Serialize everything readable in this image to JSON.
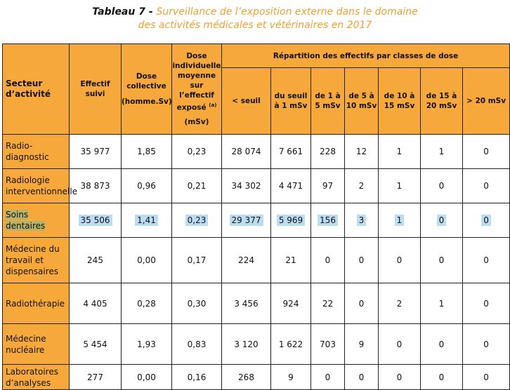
{
  "title": {
    "lead": "Tableau 7 - ",
    "line1": "Surveillance de l’exposition externe dans le domaine",
    "line2": "des activités médicales et vétérinaires en 2017"
  },
  "headers": {
    "sector": "Secteur d’activité",
    "effectif": "Effectif suivi",
    "dose_collective": "Dose collective",
    "dose_collective_unit": "(homme.Sv)",
    "dose_individuelle": "Dose individuelle moyenne sur l’effectif exposé",
    "dose_individuelle_ref": "(a)",
    "dose_individuelle_unit": "(mSv)",
    "repartition": "Répartition des effectifs par classes de dose",
    "classes": [
      "< seuil",
      "du seuil à 1 mSv",
      "de 1 à 5 mSv",
      "de 5 à 10 mSv",
      "de 10 à 15 mSv",
      "de 15 à 20 mSv",
      "> 20 mSv"
    ]
  },
  "rows": [
    {
      "sector": "Radio-diagnostic",
      "effectif": "35 977",
      "dose_collective": "1,85",
      "dose_individuelle": "0,23",
      "classes": [
        "28 074",
        "7 661",
        "228",
        "12",
        "1",
        "1",
        "0"
      ]
    },
    {
      "sector": "Radiologie interventionnelle",
      "effectif": "38 873",
      "dose_collective": "0,96",
      "dose_individuelle": "0,21",
      "classes": [
        "34 302",
        "4 471",
        "97",
        "2",
        "1",
        "0",
        "0"
      ]
    },
    {
      "sector": "Soins dentaires",
      "effectif": "35 506",
      "dose_collective": "1,41",
      "dose_individuelle": "0,23",
      "classes": [
        "29 377",
        "5 969",
        "156",
        "3",
        "1",
        "0",
        "0"
      ]
    },
    {
      "sector": "Médecine du travail et dispensaires",
      "effectif": "245",
      "dose_collective": "0,00",
      "dose_individuelle": "0,17",
      "classes": [
        "224",
        "21",
        "0",
        "0",
        "0",
        "0",
        "0"
      ]
    },
    {
      "sector": "Radiothérapie",
      "effectif": "4 405",
      "dose_collective": "0,28",
      "dose_individuelle": "0,30",
      "classes": [
        "3 456",
        "924",
        "22",
        "0",
        "2",
        "1",
        "0"
      ]
    },
    {
      "sector": "Médecine nucléaire",
      "effectif": "5 454",
      "dose_collective": "1,93",
      "dose_individuelle": "0,83",
      "classes": [
        "3 120",
        "1 622",
        "703",
        "9",
        "0",
        "0",
        "0"
      ]
    },
    {
      "sector": "Laboratoires d’analyses",
      "effectif": "277",
      "dose_collective": "0,00",
      "dose_individuelle": "0,16",
      "classes": [
        "268",
        "9",
        "0",
        "0",
        "0",
        "0",
        "0"
      ]
    }
  ],
  "highlighted_row": "Soins dentaires"
}
